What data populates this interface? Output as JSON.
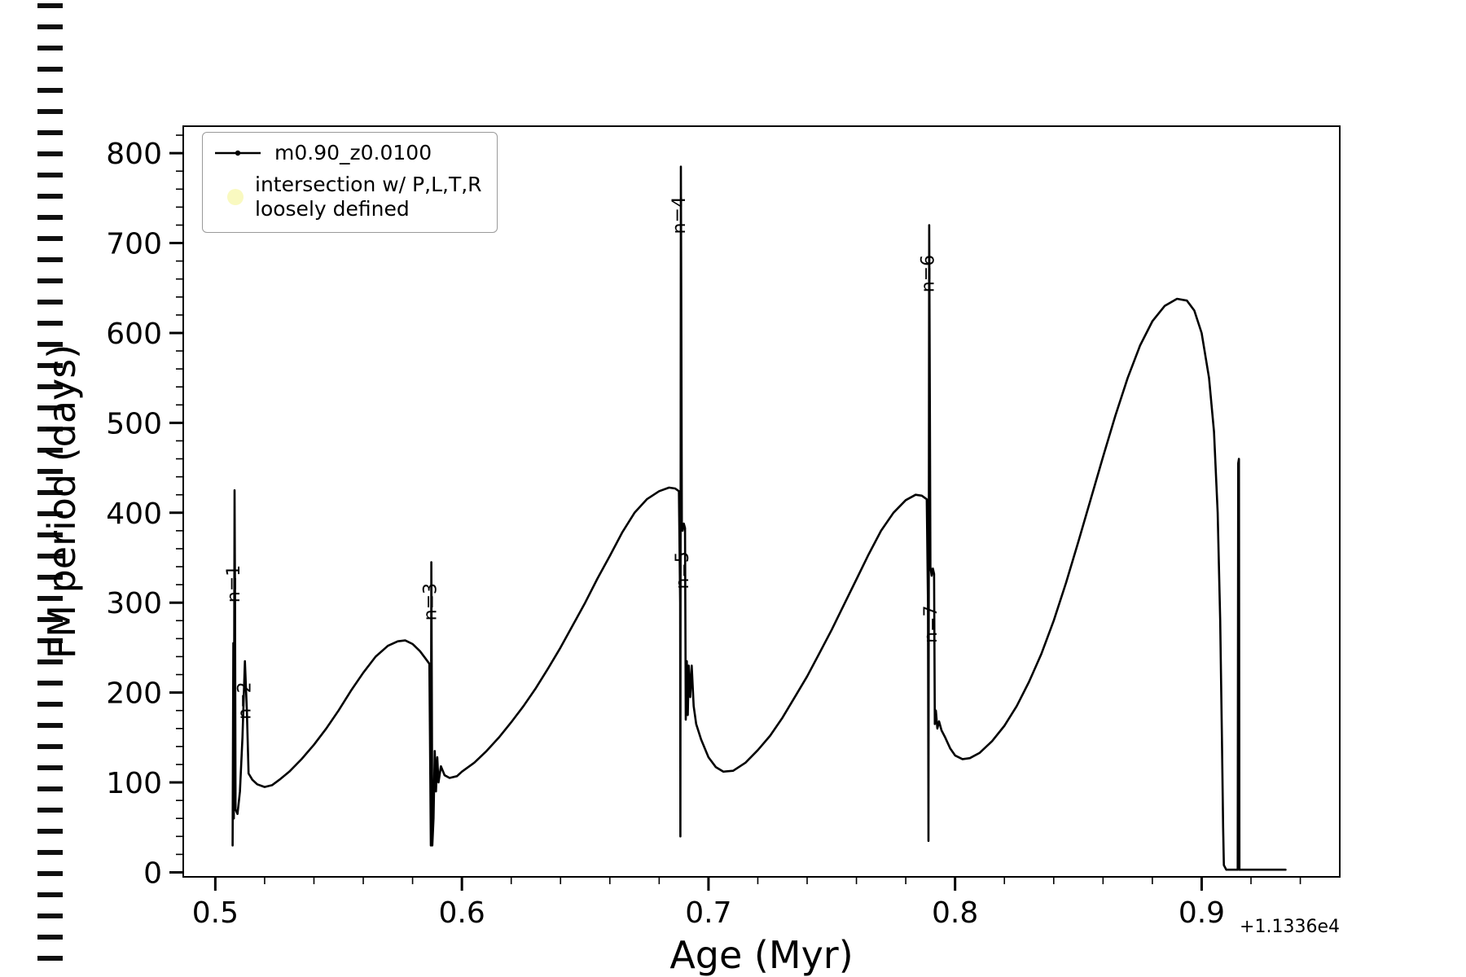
{
  "figure": {
    "title": "",
    "xlabel": "Age (Myr)",
    "ylabel": "FM period (days)",
    "offset_text": "+1.1336e4"
  },
  "legend": {
    "position": "upper left",
    "entries": [
      {
        "label": "m0.90_z0.0100",
        "marker": "line-with-dot",
        "color": "#000000"
      },
      {
        "label_lines": [
          "intersection w/ P,L,T,R",
          "loosely defined"
        ],
        "marker": "filled-dot",
        "color": "#f9f9c0"
      }
    ]
  },
  "chart_data": {
    "type": "line",
    "title": "",
    "xlabel": "Age (Myr)",
    "ylabel": "FM period (days)",
    "x_offset": "+1.1336e4",
    "xlim": [
      0.487,
      0.956
    ],
    "ylim": [
      -5,
      830
    ],
    "xticks": [
      0.5,
      0.6,
      0.7,
      0.8,
      0.9
    ],
    "xtick_labels": [
      "0.5",
      "0.6",
      "0.7",
      "0.8",
      "0.9"
    ],
    "yticks": [
      0,
      100,
      200,
      300,
      400,
      500,
      600,
      700,
      800
    ],
    "ytick_labels": [
      "0",
      "100",
      "200",
      "300",
      "400",
      "500",
      "600",
      "700",
      "800"
    ],
    "x_minor_step": 0.02,
    "y_minor_step": 20,
    "grid": false,
    "line_color": "#000000",
    "annotations": [
      {
        "label": "n=1",
        "x": 0.5098,
        "y": 300,
        "rotation": 90
      },
      {
        "label": "n=2",
        "x": 0.5142,
        "y": 170,
        "rotation": 90
      },
      {
        "label": "n=3",
        "x": 0.5895,
        "y": 280,
        "rotation": 90
      },
      {
        "label": "n=4",
        "x": 0.6905,
        "y": 710,
        "rotation": 90
      },
      {
        "label": "n=5",
        "x": 0.6917,
        "y": 315,
        "rotation": 90
      },
      {
        "label": "n=6",
        "x": 0.7914,
        "y": 645,
        "rotation": 90
      },
      {
        "label": "n=7",
        "x": 0.7925,
        "y": 255,
        "rotation": 90
      }
    ],
    "series": [
      {
        "name": "m0.90_z0.0100",
        "color": "#000000",
        "points": [
          [
            0.507,
            30
          ],
          [
            0.5073,
            255
          ],
          [
            0.5075,
            60
          ],
          [
            0.5078,
            425
          ],
          [
            0.508,
            300
          ],
          [
            0.5082,
            70
          ],
          [
            0.509,
            65
          ],
          [
            0.51,
            90
          ],
          [
            0.511,
            150
          ],
          [
            0.512,
            235
          ],
          [
            0.5128,
            180
          ],
          [
            0.5135,
            110
          ],
          [
            0.515,
            103
          ],
          [
            0.517,
            98
          ],
          [
            0.52,
            95
          ],
          [
            0.523,
            97
          ],
          [
            0.526,
            103
          ],
          [
            0.53,
            112
          ],
          [
            0.535,
            126
          ],
          [
            0.54,
            142
          ],
          [
            0.545,
            160
          ],
          [
            0.55,
            180
          ],
          [
            0.555,
            202
          ],
          [
            0.56,
            222
          ],
          [
            0.565,
            240
          ],
          [
            0.57,
            252
          ],
          [
            0.574,
            257
          ],
          [
            0.577,
            258
          ],
          [
            0.58,
            254
          ],
          [
            0.583,
            246
          ],
          [
            0.5855,
            237
          ],
          [
            0.5868,
            232
          ],
          [
            0.5872,
            100
          ],
          [
            0.5874,
            30
          ],
          [
            0.5876,
            345
          ],
          [
            0.5878,
            200
          ],
          [
            0.588,
            30
          ],
          [
            0.5885,
            60
          ],
          [
            0.589,
            135
          ],
          [
            0.5895,
            90
          ],
          [
            0.59,
            128
          ],
          [
            0.5905,
            100
          ],
          [
            0.5915,
            118
          ],
          [
            0.593,
            108
          ],
          [
            0.595,
            105
          ],
          [
            0.598,
            107
          ],
          [
            0.6,
            112
          ],
          [
            0.605,
            122
          ],
          [
            0.61,
            135
          ],
          [
            0.615,
            150
          ],
          [
            0.62,
            167
          ],
          [
            0.625,
            185
          ],
          [
            0.63,
            205
          ],
          [
            0.635,
            227
          ],
          [
            0.64,
            250
          ],
          [
            0.645,
            275
          ],
          [
            0.65,
            300
          ],
          [
            0.655,
            327
          ],
          [
            0.66,
            352
          ],
          [
            0.665,
            378
          ],
          [
            0.67,
            400
          ],
          [
            0.675,
            415
          ],
          [
            0.68,
            424
          ],
          [
            0.684,
            428
          ],
          [
            0.6865,
            427
          ],
          [
            0.688,
            424
          ],
          [
            0.6885,
            300
          ],
          [
            0.6886,
            40
          ],
          [
            0.6888,
            785
          ],
          [
            0.689,
            600
          ],
          [
            0.6892,
            385
          ],
          [
            0.6895,
            380
          ],
          [
            0.69,
            388
          ],
          [
            0.6905,
            383
          ],
          [
            0.6908,
            170
          ],
          [
            0.6912,
            235
          ],
          [
            0.6916,
            175
          ],
          [
            0.692,
            230
          ],
          [
            0.6926,
            195
          ],
          [
            0.6932,
            230
          ],
          [
            0.694,
            185
          ],
          [
            0.695,
            165
          ],
          [
            0.697,
            148
          ],
          [
            0.7,
            128
          ],
          [
            0.703,
            117
          ],
          [
            0.706,
            112
          ],
          [
            0.71,
            113
          ],
          [
            0.715,
            122
          ],
          [
            0.72,
            136
          ],
          [
            0.725,
            152
          ],
          [
            0.73,
            172
          ],
          [
            0.735,
            195
          ],
          [
            0.74,
            218
          ],
          [
            0.745,
            244
          ],
          [
            0.75,
            270
          ],
          [
            0.755,
            298
          ],
          [
            0.76,
            326
          ],
          [
            0.765,
            354
          ],
          [
            0.77,
            380
          ],
          [
            0.775,
            400
          ],
          [
            0.78,
            414
          ],
          [
            0.784,
            420
          ],
          [
            0.7865,
            419
          ],
          [
            0.7885,
            415
          ],
          [
            0.789,
            300
          ],
          [
            0.7892,
            35
          ],
          [
            0.7895,
            720
          ],
          [
            0.7898,
            500
          ],
          [
            0.79,
            340
          ],
          [
            0.7905,
            330
          ],
          [
            0.791,
            338
          ],
          [
            0.7915,
            332
          ],
          [
            0.7918,
            165
          ],
          [
            0.7922,
            180
          ],
          [
            0.7928,
            160
          ],
          [
            0.7935,
            168
          ],
          [
            0.7945,
            158
          ],
          [
            0.796,
            150
          ],
          [
            0.798,
            138
          ],
          [
            0.8,
            130
          ],
          [
            0.803,
            126
          ],
          [
            0.806,
            127
          ],
          [
            0.81,
            133
          ],
          [
            0.815,
            146
          ],
          [
            0.82,
            163
          ],
          [
            0.825,
            185
          ],
          [
            0.83,
            212
          ],
          [
            0.835,
            243
          ],
          [
            0.84,
            280
          ],
          [
            0.845,
            322
          ],
          [
            0.85,
            368
          ],
          [
            0.855,
            415
          ],
          [
            0.86,
            462
          ],
          [
            0.865,
            508
          ],
          [
            0.87,
            550
          ],
          [
            0.875,
            586
          ],
          [
            0.88,
            613
          ],
          [
            0.885,
            630
          ],
          [
            0.89,
            638
          ],
          [
            0.894,
            636
          ],
          [
            0.897,
            625
          ],
          [
            0.9,
            600
          ],
          [
            0.903,
            550
          ],
          [
            0.905,
            490
          ],
          [
            0.9065,
            400
          ],
          [
            0.9075,
            280
          ],
          [
            0.9082,
            150
          ],
          [
            0.9087,
            50
          ],
          [
            0.909,
            8
          ],
          [
            0.91,
            3
          ],
          [
            0.912,
            3
          ],
          [
            0.9146,
            3
          ],
          [
            0.9148,
            455
          ],
          [
            0.9151,
            460
          ],
          [
            0.9153,
            3
          ],
          [
            0.92,
            3
          ],
          [
            0.925,
            3
          ],
          [
            0.93,
            3
          ],
          [
            0.934,
            3
          ]
        ]
      }
    ]
  }
}
